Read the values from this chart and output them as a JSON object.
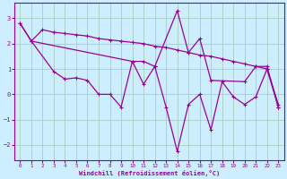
{
  "xlabel": "Windchill (Refroidissement éolien,°C)",
  "background_color": "#cceeff",
  "line_color": "#990099",
  "grid_color": "#aaccbb",
  "xlim": [
    -0.5,
    23.5
  ],
  "ylim": [
    -2.6,
    3.6
  ],
  "yticks": [
    -2,
    -1,
    0,
    1,
    2,
    3
  ],
  "xticks": [
    0,
    1,
    2,
    3,
    4,
    5,
    6,
    7,
    8,
    9,
    10,
    11,
    12,
    13,
    14,
    15,
    16,
    17,
    18,
    19,
    20,
    21,
    22,
    23
  ],
  "line1_x": [
    0,
    1,
    2,
    3,
    4,
    5,
    6,
    7,
    8,
    9,
    10,
    11,
    12,
    13,
    14,
    15,
    16,
    17,
    18,
    19,
    20,
    21,
    22,
    23
  ],
  "line1_y": [
    2.8,
    2.1,
    2.55,
    2.45,
    2.4,
    2.35,
    2.3,
    2.2,
    2.15,
    2.1,
    2.05,
    2.0,
    1.9,
    1.85,
    1.75,
    1.65,
    1.55,
    1.5,
    1.4,
    1.3,
    1.2,
    1.1,
    1.0,
    -0.4
  ],
  "line2_x": [
    0,
    1,
    3,
    4,
    5,
    6,
    7,
    8,
    9,
    10,
    11,
    12,
    13,
    14,
    15,
    16,
    17,
    18,
    19,
    20,
    21,
    22,
    23
  ],
  "line2_y": [
    2.8,
    2.1,
    0.9,
    0.6,
    0.65,
    0.55,
    0.0,
    0.0,
    -0.5,
    1.3,
    0.4,
    1.1,
    -0.5,
    -2.25,
    -0.4,
    0.0,
    -1.4,
    0.5,
    -0.1,
    -0.4,
    -0.1,
    1.0,
    -0.5
  ],
  "line3_x": [
    1,
    10,
    11,
    12,
    14,
    15,
    16,
    17,
    20,
    21,
    22,
    23
  ],
  "line3_y": [
    2.1,
    1.3,
    1.3,
    1.1,
    3.3,
    1.65,
    2.2,
    0.55,
    0.5,
    1.1,
    1.1,
    -0.5
  ]
}
